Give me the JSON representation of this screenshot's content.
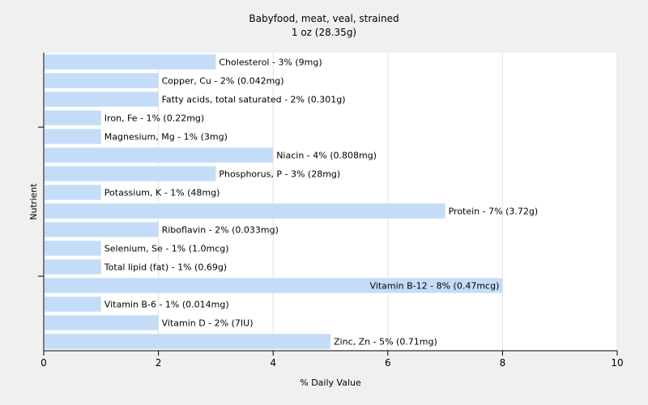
{
  "chart_data": {
    "type": "bar",
    "orientation": "horizontal",
    "title": "Babyfood, meat, veal, strained",
    "subtitle": "1 oz (28.35g)",
    "xlabel": "% Daily Value",
    "ylabel": "Nutrient",
    "xlim": [
      0,
      10
    ],
    "xticks": [
      0,
      2,
      4,
      6,
      8,
      10
    ],
    "grid": "vertical",
    "bar_color": "#c5dcf9",
    "background_color": "#f0f0f0",
    "plot_background_color": "#ffffff",
    "categories": [
      "Cholesterol",
      "Copper, Cu",
      "Fatty acids, total saturated",
      "Iron, Fe",
      "Magnesium, Mg",
      "Niacin",
      "Phosphorus, P",
      "Potassium, K",
      "Protein",
      "Riboflavin",
      "Selenium, Se",
      "Total lipid (fat)",
      "Vitamin B-12",
      "Vitamin B-6",
      "Vitamin D",
      "Zinc, Zn"
    ],
    "values": [
      3,
      2,
      2,
      1,
      1,
      4,
      3,
      1,
      7,
      2,
      1,
      1,
      8,
      1,
      2,
      5
    ],
    "labels": [
      "Cholesterol - 3% (9mg)",
      "Copper, Cu - 2% (0.042mg)",
      "Fatty acids, total saturated - 2% (0.301g)",
      "Iron, Fe - 1% (0.22mg)",
      "Magnesium, Mg - 1% (3mg)",
      "Niacin - 4% (0.808mg)",
      "Phosphorus, P - 3% (28mg)",
      "Potassium, K - 1% (48mg)",
      "Protein - 7% (3.72g)",
      "Riboflavin - 2% (0.033mg)",
      "Selenium, Se - 1% (1.0mcg)",
      "Total lipid (fat) - 1% (0.69g)",
      "Vitamin B-12 - 8% (0.47mcg)",
      "Vitamin B-6 - 1% (0.014mg)",
      "Vitamin D - 2% (7IU)",
      "Zinc, Zn - 5% (0.71mg)"
    ]
  }
}
